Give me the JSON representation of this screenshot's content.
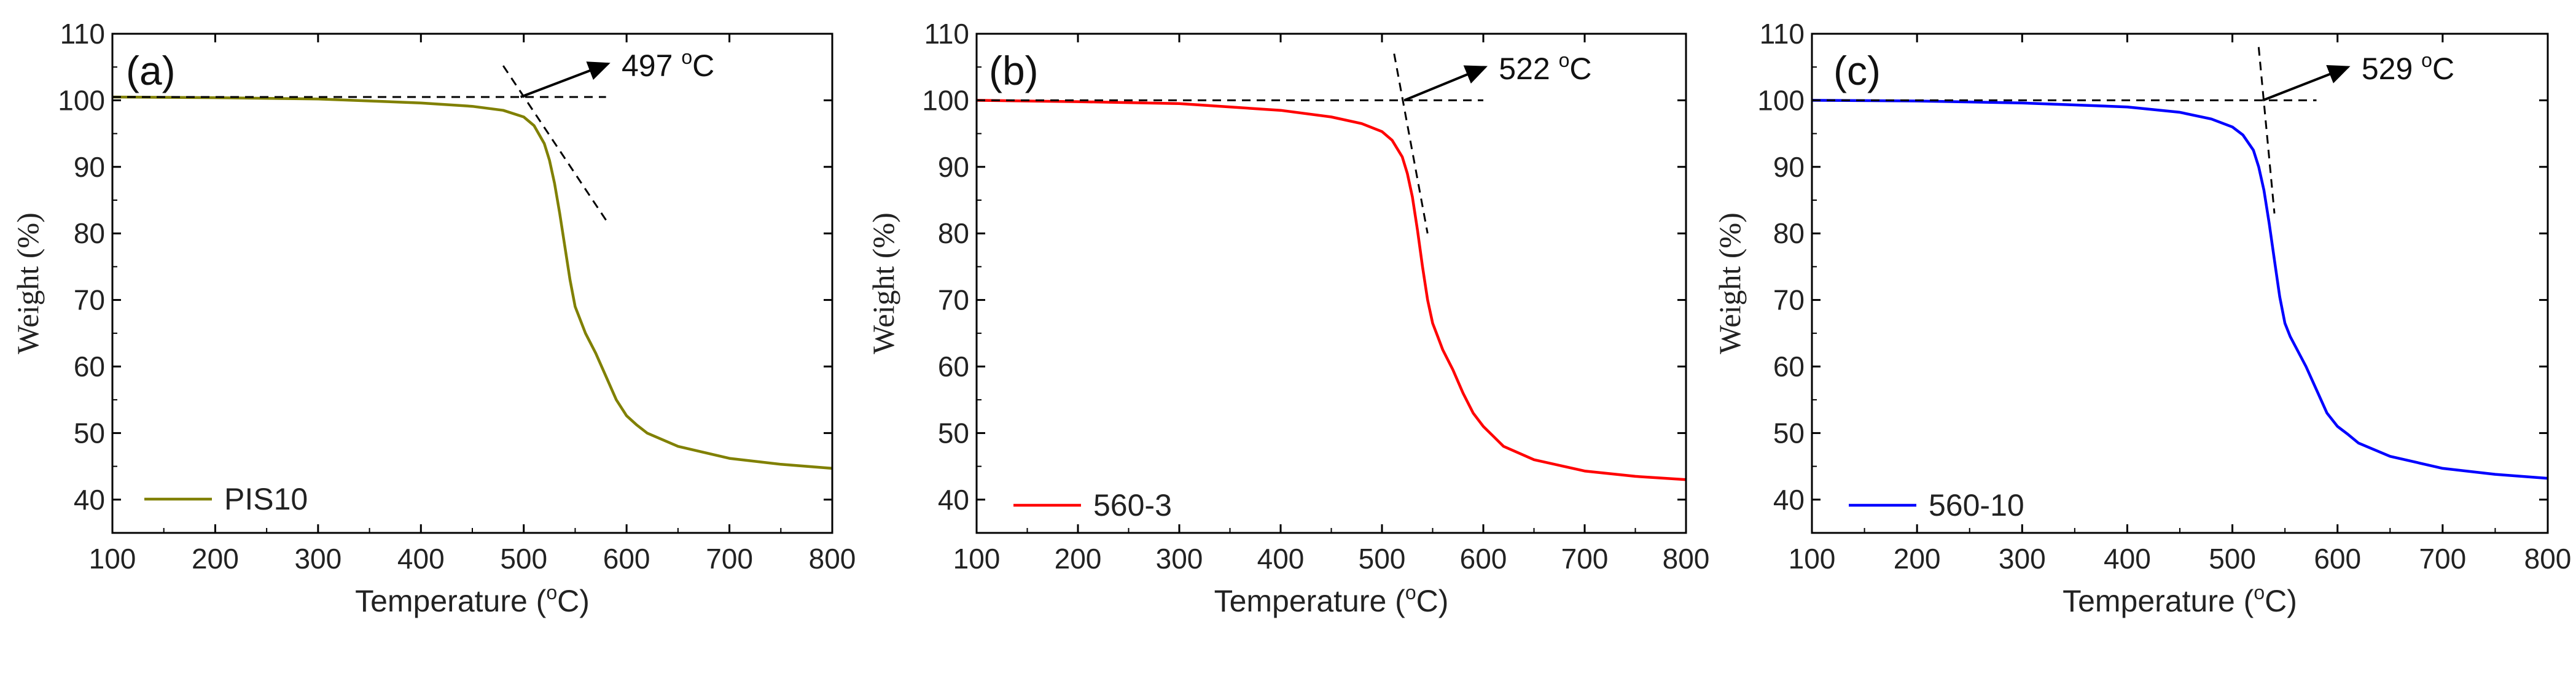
{
  "chart_data": [
    {
      "type": "line",
      "panel_label": "(a)",
      "xlabel_pre": "Temperature (",
      "xlabel_sup": "o",
      "xlabel_post": "C)",
      "ylabel": "Weight (%)",
      "xlim": [
        100,
        800
      ],
      "ylim": [
        35,
        110
      ],
      "x_ticks": [
        100,
        200,
        300,
        400,
        500,
        600,
        700,
        800
      ],
      "y_ticks": [
        40,
        50,
        60,
        70,
        80,
        90,
        100,
        110
      ],
      "legend_position": "bottom-left",
      "series": [
        {
          "name": "PIS10",
          "color": "#808000",
          "x": [
            100,
            200,
            300,
            400,
            450,
            480,
            500,
            510,
            520,
            525,
            530,
            535,
            540,
            545,
            550,
            555,
            560,
            570,
            580,
            590,
            600,
            610,
            620,
            650,
            700,
            750,
            800
          ],
          "y": [
            100.5,
            100.4,
            100.2,
            99.6,
            99.1,
            98.5,
            97.5,
            96.2,
            93.5,
            91.0,
            87.5,
            83.0,
            78.0,
            73.0,
            69.0,
            67.0,
            65.0,
            62.0,
            58.5,
            55.0,
            52.6,
            51.2,
            50.0,
            48.0,
            46.2,
            45.3,
            44.7
          ]
        }
      ],
      "annotation": {
        "value": "497 ",
        "sup": "o",
        "unit": "C",
        "onset_x": 497,
        "onset_y": 100.5,
        "baseline": [
          100.5,
          100.5
        ],
        "baseline_x": [
          100,
          580
        ],
        "tangent_x": [
          480,
          580
        ],
        "tangent_y": [
          105.2,
          82.0
        ],
        "arrow_end": [
          582,
          105.5
        ]
      }
    },
    {
      "type": "line",
      "panel_label": "(b)",
      "xlabel_pre": "Temperature (",
      "xlabel_sup": "o",
      "xlabel_post": "C)",
      "ylabel": "Weight (%)",
      "xlim": [
        100,
        800
      ],
      "ylim": [
        35,
        110
      ],
      "x_ticks": [
        100,
        200,
        300,
        400,
        500,
        600,
        700,
        800
      ],
      "y_ticks": [
        40,
        50,
        60,
        70,
        80,
        90,
        100,
        110
      ],
      "legend_position": "bottom-left",
      "series": [
        {
          "name": "560-3",
          "color": "#ff0000",
          "x": [
            100,
            200,
            300,
            400,
            450,
            480,
            500,
            510,
            520,
            525,
            530,
            535,
            540,
            545,
            550,
            555,
            560,
            570,
            580,
            590,
            600,
            610,
            620,
            650,
            700,
            750,
            800
          ],
          "y": [
            100.0,
            99.8,
            99.5,
            98.5,
            97.5,
            96.5,
            95.3,
            94.0,
            91.5,
            89.0,
            85.5,
            80.5,
            75.0,
            70.0,
            66.5,
            64.5,
            62.5,
            59.5,
            56.0,
            53.0,
            51.0,
            49.5,
            48.0,
            46.0,
            44.3,
            43.5,
            43.0
          ]
        }
      ],
      "annotation": {
        "value": "522 ",
        "sup": "o",
        "unit": "C",
        "onset_x": 522,
        "onset_y": 100.0,
        "baseline": [
          100.0,
          100.0
        ],
        "baseline_x": [
          100,
          600
        ],
        "tangent_x": [
          512,
          545
        ],
        "tangent_y": [
          107.0,
          80.0
        ],
        "arrow_end": [
          602,
          105.0
        ]
      }
    },
    {
      "type": "line",
      "panel_label": "(c)",
      "xlabel_pre": "Temperature (",
      "xlabel_sup": "o",
      "xlabel_post": "C)",
      "ylabel": "Weight (%)",
      "xlim": [
        100,
        800
      ],
      "ylim": [
        35,
        110
      ],
      "x_ticks": [
        100,
        200,
        300,
        400,
        500,
        600,
        700,
        800
      ],
      "y_ticks": [
        40,
        50,
        60,
        70,
        80,
        90,
        100,
        110
      ],
      "legend_position": "bottom-left",
      "series": [
        {
          "name": "560-10",
          "color": "#0000ff",
          "x": [
            100,
            200,
            300,
            400,
            450,
            480,
            500,
            510,
            520,
            525,
            530,
            535,
            540,
            545,
            550,
            555,
            560,
            570,
            580,
            590,
            600,
            610,
            620,
            650,
            700,
            750,
            800
          ],
          "y": [
            100.0,
            99.9,
            99.6,
            99.0,
            98.2,
            97.2,
            96.0,
            94.8,
            92.5,
            90.0,
            86.5,
            81.5,
            76.0,
            70.5,
            66.5,
            64.5,
            63.0,
            60.0,
            56.5,
            53.0,
            51.0,
            49.8,
            48.5,
            46.5,
            44.7,
            43.8,
            43.2
          ]
        }
      ],
      "annotation": {
        "value": "529 ",
        "sup": "o",
        "unit": "C",
        "onset_x": 529,
        "onset_y": 100.0,
        "baseline": [
          100.0,
          100.0
        ],
        "baseline_x": [
          100,
          580
        ],
        "tangent_x": [
          525,
          540
        ],
        "tangent_y": [
          108.0,
          83.0
        ],
        "arrow_end": [
          610,
          105.0
        ]
      }
    }
  ]
}
